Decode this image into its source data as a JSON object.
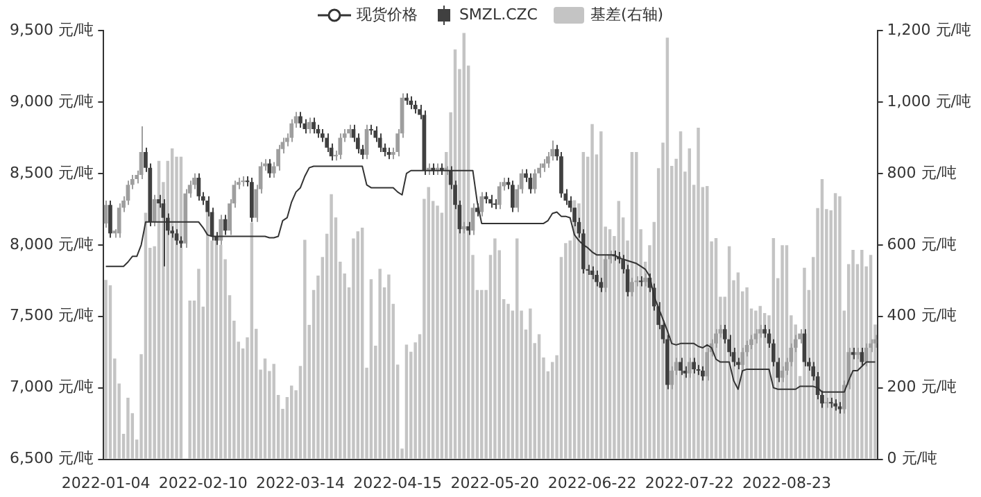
{
  "chart_data": {
    "type": "candlestick",
    "legend": "top",
    "grid": false,
    "categories": [
      "2022-01-04",
      null,
      null,
      null,
      null,
      null,
      null,
      null,
      null,
      null,
      null,
      null,
      null,
      null,
      null,
      null,
      null,
      null,
      null,
      null,
      null,
      null,
      "2022-02-10",
      null,
      null,
      null,
      null,
      null,
      null,
      null,
      null,
      null,
      null,
      null,
      null,
      null,
      null,
      null,
      null,
      null,
      null,
      null,
      null,
      null,
      "2022-03-14",
      null,
      null,
      null,
      null,
      null,
      null,
      null,
      null,
      null,
      null,
      null,
      null,
      null,
      null,
      null,
      null,
      null,
      null,
      null,
      null,
      null,
      "2022-04-15",
      null,
      null,
      null,
      null,
      null,
      null,
      null,
      null,
      null,
      null,
      null,
      null,
      null,
      null,
      null,
      null,
      null,
      null,
      null,
      null,
      null,
      "2022-05-20",
      null,
      null,
      null,
      null,
      null,
      null,
      null,
      null,
      null,
      null,
      null,
      null,
      null,
      null,
      null,
      null,
      null,
      null,
      null,
      null,
      null,
      "2022-06-22",
      null,
      null,
      null,
      null,
      null,
      null,
      null,
      null,
      null,
      null,
      null,
      null,
      null,
      null,
      null,
      null,
      null,
      null,
      null,
      null,
      null,
      "2022-07-22",
      null,
      null,
      null,
      null,
      null,
      null,
      null,
      null,
      null,
      null,
      null,
      null,
      null,
      null,
      null,
      null,
      null,
      null,
      null,
      null,
      null,
      "2022-08-23",
      null,
      null,
      null,
      null,
      null,
      null,
      null,
      null,
      null,
      null,
      null,
      null,
      null,
      null,
      null,
      null,
      null,
      null,
      null,
      null
    ],
    "ylim": [
      6500,
      9500
    ],
    "yticks": [
      {
        "value": 6500,
        "label": "6,500 元/吨"
      },
      {
        "value": 7000,
        "label": "7,000 元/吨"
      },
      {
        "value": 7500,
        "label": "7,500 元/吨"
      },
      {
        "value": 8000,
        "label": "8,000 元/吨"
      },
      {
        "value": 8500,
        "label": "8,500 元/吨"
      },
      {
        "value": 9000,
        "label": "9,000 元/吨"
      },
      {
        "value": 9500,
        "label": "9,500 元/吨"
      }
    ],
    "y2lim": [
      0,
      1200
    ],
    "y2ticks": [
      {
        "value": 0,
        "label": "0 元/吨"
      },
      {
        "value": 200,
        "label": "200 元/吨"
      },
      {
        "value": 400,
        "label": "400 元/吨"
      },
      {
        "value": 600,
        "label": "600 元/吨"
      },
      {
        "value": 800,
        "label": "800 元/吨"
      },
      {
        "value": 1000,
        "label": "1,000 元/吨"
      },
      {
        "value": 1200,
        "label": "1,200 元/吨"
      }
    ],
    "series": [
      {
        "name": "现货价格",
        "type": "line",
        "color": "#333333",
        "values": [
          7850,
          7850,
          7850,
          7850,
          7850,
          7880,
          7920,
          7920,
          8000,
          8160,
          8160,
          8160,
          8160,
          8160,
          8160,
          8160,
          8160,
          8160,
          8160,
          8160,
          8160,
          8160,
          8120,
          8070,
          8060,
          8060,
          8060,
          8060,
          8060,
          8060,
          8060,
          8060,
          8060,
          8060,
          8060,
          8060,
          8060,
          8050,
          8050,
          8060,
          8170,
          8190,
          8300,
          8370,
          8400,
          8480,
          8540,
          8550,
          8550,
          8550,
          8550,
          8550,
          8550,
          8550,
          8550,
          8550,
          8550,
          8550,
          8550,
          8420,
          8400,
          8400,
          8400,
          8400,
          8400,
          8400,
          8370,
          8350,
          8500,
          8520,
          8520,
          8520,
          8520,
          8520,
          8520,
          8520,
          8520,
          8520,
          8520,
          8520,
          8520,
          8520,
          8520,
          8520,
          8300,
          8150,
          8150,
          8150,
          8150,
          8150,
          8150,
          8150,
          8150,
          8150,
          8150,
          8150,
          8150,
          8150,
          8150,
          8150,
          8170,
          8220,
          8230,
          8200,
          8200,
          8190,
          8070,
          8030,
          8000,
          7980,
          7950,
          7930,
          7930,
          7930,
          7930,
          7930,
          7910,
          7900,
          7890,
          7880,
          7870,
          7850,
          7830,
          7780,
          7640,
          7560,
          7480,
          7400,
          7310,
          7300,
          7310,
          7310,
          7310,
          7310,
          7290,
          7280,
          7300,
          7280,
          7200,
          7180,
          7180,
          7180,
          7050,
          6990,
          7120,
          7130,
          7130,
          7130,
          7130,
          7130,
          7130,
          7000,
          6990,
          6990,
          6990,
          6990,
          6990,
          7010,
          7010,
          7010,
          7010,
          7000,
          6970,
          6970,
          6970,
          6970,
          6970,
          6970,
          7050,
          7120,
          7120,
          7150,
          7180,
          7180,
          7180
        ]
      },
      {
        "name": "SMZL.CZC",
        "color": "#404040",
        "colors": [
          "#9e9e9e",
          "#404040",
          "#9e9e9e",
          "#9e9e9e",
          "#9e9e9e",
          "#9e9e9e",
          "#9e9e9e",
          "#9e9e9e",
          "#9e9e9e",
          "#404040",
          "#404040",
          "#9e9e9e",
          "#404040",
          "#404040",
          "#404040",
          "#404040",
          "#404040",
          "#404040",
          "#9e9e9e",
          "#9e9e9e",
          "#9e9e9e",
          "#404040",
          "#404040",
          "#404040",
          "#404040",
          "#404040",
          "#9e9e9e",
          "#404040",
          "#9e9e9e",
          "#9e9e9e",
          "#9e9e9e",
          "#9e9e9e",
          "#404040",
          "#404040",
          "#9e9e9e",
          "#9e9e9e",
          "#9e9e9e",
          "#404040",
          "#9e9e9e",
          "#9e9e9e",
          "#9e9e9e",
          "#9e9e9e",
          "#9e9e9e",
          "#9e9e9e",
          "#404040",
          "#404040",
          "#9e9e9e",
          "#404040",
          "#404040",
          "#404040",
          "#404040",
          "#404040",
          "#9e9e9e",
          "#9e9e9e",
          "#9e9e9e",
          "#9e9e9e",
          "#404040",
          "#404040",
          "#404040",
          "#9e9e9e",
          "#404040",
          "#404040",
          "#404040",
          "#404040",
          "#404040",
          "#9e9e9e",
          "#9e9e9e",
          "#9e9e9e",
          "#404040",
          "#404040",
          "#404040",
          "#404040",
          "#404040",
          "#9e9e9e",
          "#404040",
          "#9e9e9e",
          "#404040",
          "#9e9e9e",
          "#404040",
          "#404040",
          "#404040",
          "#9e9e9e",
          "#404040",
          "#9e9e9e",
          "#404040",
          "#9e9e9e",
          "#404040",
          "#404040",
          "#404040",
          "#9e9e9e",
          "#9e9e9e",
          "#404040",
          "#404040",
          "#9e9e9e",
          "#9e9e9e",
          "#404040",
          "#404040",
          "#9e9e9e",
          "#9e9e9e",
          "#9e9e9e",
          "#9e9e9e",
          "#9e9e9e",
          "#404040",
          "#404040",
          "#404040",
          "#404040",
          "#404040",
          "#404040",
          "#404040",
          "#404040",
          "#404040",
          "#404040",
          "#404040",
          "#9e9e9e",
          "#9e9e9e",
          "#404040",
          "#404040",
          "#404040",
          "#404040",
          "#9e9e9e",
          "#9e9e9e",
          "#404040",
          "#9e9e9e",
          "#404040",
          "#404040",
          "#404040",
          "#404040",
          "#404040",
          "#9e9e9e",
          "#9e9e9e",
          "#404040",
          "#404040",
          "#9e9e9e",
          "#404040",
          "#404040",
          "#404040",
          "#9e9e9e",
          "#9e9e9e",
          "#9e9e9e",
          "#9e9e9e",
          "#404040",
          "#404040",
          "#404040",
          "#404040",
          "#9e9e9e",
          "#9e9e9e",
          "#9e9e9e",
          "#9e9e9e",
          "#9e9e9e",
          "#404040",
          "#404040",
          "#404040",
          "#404040",
          "#9e9e9e",
          "#9e9e9e",
          "#9e9e9e",
          "#9e9e9e",
          "#9e9e9e",
          "#404040",
          "#404040",
          "#404040",
          "#404040",
          "#404040",
          "#9e9e9e",
          "#404040",
          "#404040",
          "#404040",
          "#9e9e9e",
          "#9e9e9e",
          "#404040",
          "#9e9e9e",
          "#404040",
          "#9e9e9e",
          "#9e9e9e",
          "#9e9e9e"
        ],
        "ohlc": [
          [
            8150,
            8310,
            8120,
            8280
          ],
          [
            8280,
            8310,
            8050,
            8080
          ],
          [
            8080,
            8110,
            8050,
            8100
          ],
          [
            8080,
            8290,
            8050,
            8260
          ],
          [
            8260,
            8340,
            8230,
            8310
          ],
          [
            8310,
            8450,
            8280,
            8420
          ],
          [
            8420,
            8490,
            8390,
            8460
          ],
          [
            8460,
            8520,
            8430,
            8490
          ],
          [
            8490,
            8830,
            8460,
            8650
          ],
          [
            8650,
            8680,
            8510,
            8540
          ],
          [
            8540,
            8570,
            8130,
            8160
          ],
          [
            8160,
            8350,
            8130,
            8320
          ],
          [
            8320,
            8350,
            8260,
            8290
          ],
          [
            8290,
            8320,
            7850,
            8190
          ],
          [
            8190,
            8220,
            8070,
            8100
          ],
          [
            8100,
            8130,
            8050,
            8080
          ],
          [
            8080,
            8110,
            8000,
            8030
          ],
          [
            8030,
            8060,
            7980,
            8010
          ],
          [
            8010,
            8390,
            7980,
            8360
          ],
          [
            8360,
            8450,
            8330,
            8420
          ],
          [
            8420,
            8500,
            8390,
            8470
          ],
          [
            8470,
            8500,
            8310,
            8340
          ],
          [
            8340,
            8370,
            8280,
            8310
          ],
          [
            8310,
            8340,
            8200,
            8230
          ],
          [
            8230,
            8260,
            8030,
            8060
          ],
          [
            8060,
            8090,
            8000,
            8030
          ],
          [
            8030,
            8210,
            8000,
            8180
          ],
          [
            8180,
            8210,
            8070,
            8100
          ],
          [
            8100,
            8320,
            8070,
            8290
          ],
          [
            8290,
            8450,
            8260,
            8420
          ],
          [
            8420,
            8470,
            8390,
            8440
          ],
          [
            8440,
            8480,
            8410,
            8450
          ],
          [
            8450,
            8480,
            8410,
            8440
          ],
          [
            8440,
            8470,
            8160,
            8190
          ],
          [
            8190,
            8420,
            8160,
            8390
          ],
          [
            8390,
            8580,
            8360,
            8550
          ],
          [
            8550,
            8600,
            8520,
            8570
          ],
          [
            8570,
            8600,
            8470,
            8500
          ],
          [
            8500,
            8580,
            8470,
            8550
          ],
          [
            8550,
            8700,
            8520,
            8670
          ],
          [
            8670,
            8750,
            8640,
            8720
          ],
          [
            8720,
            8780,
            8690,
            8750
          ],
          [
            8750,
            8880,
            8720,
            8850
          ],
          [
            8850,
            8930,
            8820,
            8900
          ],
          [
            8900,
            8930,
            8820,
            8850
          ],
          [
            8850,
            8880,
            8780,
            8810
          ],
          [
            8810,
            8890,
            8780,
            8860
          ],
          [
            8860,
            8890,
            8780,
            8810
          ],
          [
            8810,
            8840,
            8750,
            8780
          ],
          [
            8780,
            8810,
            8720,
            8750
          ],
          [
            8750,
            8780,
            8650,
            8680
          ],
          [
            8680,
            8710,
            8590,
            8620
          ],
          [
            8620,
            8660,
            8590,
            8630
          ],
          [
            8630,
            8780,
            8600,
            8750
          ],
          [
            8750,
            8810,
            8720,
            8780
          ],
          [
            8780,
            8840,
            8750,
            8810
          ],
          [
            8810,
            8840,
            8720,
            8750
          ],
          [
            8750,
            8780,
            8640,
            8670
          ],
          [
            8670,
            8700,
            8600,
            8630
          ],
          [
            8630,
            8840,
            8600,
            8810
          ],
          [
            8810,
            8840,
            8770,
            8800
          ],
          [
            8800,
            8830,
            8720,
            8750
          ],
          [
            8750,
            8780,
            8650,
            8680
          ],
          [
            8680,
            8710,
            8620,
            8650
          ],
          [
            8650,
            8680,
            8600,
            8630
          ],
          [
            8630,
            8680,
            8600,
            8650
          ],
          [
            8650,
            8810,
            8620,
            8780
          ],
          [
            8780,
            9060,
            8750,
            9030
          ],
          [
            9030,
            9060,
            8980,
            9010
          ],
          [
            9010,
            9040,
            8950,
            8980
          ],
          [
            8980,
            9010,
            8920,
            8950
          ],
          [
            8950,
            8980,
            8880,
            8910
          ],
          [
            8910,
            8940,
            8490,
            8520
          ],
          [
            8520,
            8570,
            8490,
            8540
          ],
          [
            8540,
            8570,
            8490,
            8520
          ],
          [
            8520,
            8570,
            8490,
            8540
          ],
          [
            8540,
            8570,
            8490,
            8520
          ],
          [
            8520,
            8550,
            8490,
            8540
          ],
          [
            8520,
            8550,
            8390,
            8420
          ],
          [
            8420,
            8450,
            8250,
            8280
          ],
          [
            8280,
            8310,
            8080,
            8110
          ],
          [
            8110,
            8160,
            8080,
            8130
          ],
          [
            8130,
            8160,
            8070,
            8100
          ],
          [
            8100,
            8290,
            8070,
            8260
          ],
          [
            8260,
            8290,
            8200,
            8230
          ],
          [
            8230,
            8370,
            8200,
            8340
          ],
          [
            8340,
            8370,
            8290,
            8320
          ],
          [
            8320,
            8350,
            8260,
            8290
          ],
          [
            8290,
            8320,
            8250,
            8280
          ],
          [
            8280,
            8440,
            8250,
            8410
          ],
          [
            8410,
            8470,
            8380,
            8440
          ],
          [
            8440,
            8470,
            8390,
            8420
          ],
          [
            8420,
            8450,
            8230,
            8260
          ],
          [
            8260,
            8420,
            8230,
            8390
          ],
          [
            8390,
            8530,
            8360,
            8500
          ],
          [
            8500,
            8530,
            8440,
            8470
          ],
          [
            8470,
            8500,
            8360,
            8390
          ],
          [
            8390,
            8530,
            8360,
            8500
          ],
          [
            8500,
            8570,
            8470,
            8540
          ],
          [
            8540,
            8600,
            8510,
            8570
          ],
          [
            8570,
            8650,
            8540,
            8620
          ],
          [
            8620,
            8730,
            8590,
            8670
          ],
          [
            8670,
            8700,
            8590,
            8620
          ],
          [
            8620,
            8650,
            8330,
            8360
          ],
          [
            8360,
            8390,
            8280,
            8310
          ],
          [
            8310,
            8340,
            8230,
            8260
          ],
          [
            8260,
            8260,
            8130,
            8160
          ],
          [
            8160,
            8190,
            8050,
            8080
          ],
          [
            8080,
            8110,
            7800,
            7830
          ],
          [
            7830,
            7860,
            7790,
            7820
          ],
          [
            7820,
            7850,
            7760,
            7790
          ],
          [
            7790,
            7820,
            7710,
            7740
          ],
          [
            7740,
            7770,
            7670,
            7700
          ],
          [
            7700,
            7930,
            7670,
            7900
          ],
          [
            7900,
            7960,
            7870,
            7930
          ],
          [
            7930,
            7960,
            7890,
            7920
          ],
          [
            7920,
            7950,
            7870,
            7900
          ],
          [
            7900,
            7930,
            7800,
            7830
          ],
          [
            7830,
            7860,
            7640,
            7670
          ],
          [
            7670,
            7770,
            7640,
            7740
          ],
          [
            7740,
            7780,
            7710,
            7750
          ],
          [
            7750,
            7780,
            7710,
            7740
          ],
          [
            7740,
            7800,
            7710,
            7770
          ],
          [
            7770,
            7800,
            7670,
            7700
          ],
          [
            7700,
            7730,
            7540,
            7570
          ],
          [
            7570,
            7600,
            7410,
            7440
          ],
          [
            7440,
            7470,
            7310,
            7340
          ],
          [
            7340,
            7370,
            6990,
            7020
          ],
          [
            7020,
            7150,
            6990,
            7120
          ],
          [
            7120,
            7210,
            7090,
            7180
          ],
          [
            7180,
            7210,
            7090,
            7120
          ],
          [
            7120,
            7150,
            7070,
            7100
          ],
          [
            7100,
            7210,
            7070,
            7180
          ],
          [
            7180,
            7210,
            7100,
            7130
          ],
          [
            7130,
            7160,
            7090,
            7120
          ],
          [
            7120,
            7150,
            7050,
            7080
          ],
          [
            7080,
            7280,
            7050,
            7250
          ],
          [
            7250,
            7340,
            7220,
            7310
          ],
          [
            7310,
            7410,
            7280,
            7380
          ],
          [
            7380,
            7440,
            7350,
            7410
          ],
          [
            7410,
            7440,
            7310,
            7340
          ],
          [
            7340,
            7370,
            7220,
            7250
          ],
          [
            7250,
            7280,
            7150,
            7180
          ],
          [
            7180,
            7210,
            7130,
            7160
          ],
          [
            7160,
            7280,
            7130,
            7250
          ],
          [
            7250,
            7330,
            7220,
            7300
          ],
          [
            7300,
            7370,
            7270,
            7340
          ],
          [
            7340,
            7410,
            7310,
            7380
          ],
          [
            7380,
            7440,
            7350,
            7410
          ],
          [
            7410,
            7440,
            7350,
            7380
          ],
          [
            7380,
            7410,
            7280,
            7310
          ],
          [
            7310,
            7340,
            7150,
            7180
          ],
          [
            7180,
            7210,
            7040,
            7070
          ],
          [
            7070,
            7150,
            7040,
            7120
          ],
          [
            7120,
            7210,
            7090,
            7180
          ],
          [
            7180,
            7310,
            7150,
            7280
          ],
          [
            7280,
            7370,
            7250,
            7340
          ],
          [
            7340,
            7410,
            7310,
            7380
          ],
          [
            7380,
            7410,
            7150,
            7180
          ],
          [
            7180,
            7210,
            7120,
            7150
          ],
          [
            7150,
            7180,
            7050,
            7080
          ],
          [
            7080,
            7110,
            6920,
            6950
          ],
          [
            6950,
            6980,
            6860,
            6890
          ],
          [
            6890,
            6930,
            6860,
            6900
          ],
          [
            6900,
            6930,
            6860,
            6890
          ],
          [
            6890,
            6920,
            6840,
            6870
          ],
          [
            6870,
            6900,
            6820,
            6850
          ],
          [
            6850,
            7050,
            6820,
            7020
          ],
          [
            7020,
            7280,
            6990,
            7250
          ],
          [
            7250,
            7280,
            7200,
            7230
          ],
          [
            7230,
            7280,
            7200,
            7250
          ],
          [
            7250,
            7280,
            7150,
            7180
          ],
          [
            7180,
            7310,
            7150,
            7280
          ],
          [
            7280,
            7340,
            7250,
            7310
          ],
          [
            7310,
            7370,
            7280,
            7340
          ]
        ]
      },
      {
        "name": "基差(右轴)",
        "type": "bar",
        "axis": "y2",
        "color": "#c4c4c4",
        "values": [
          502,
          487,
          282,
          212,
          71,
          172,
          129,
          55,
          294,
          690,
          592,
          596,
          835,
          776,
          835,
          870,
          847,
          847,
          null,
          444,
          444,
          533,
          427,
          703,
          612,
          624,
          600,
          560,
          459,
          388,
          329,
          310,
          341,
          663,
          365,
          251,
          282,
          247,
          267,
          180,
          141,
          174,
          206,
          193,
          261,
          614,
          376,
          474,
          514,
          566,
          631,
          742,
          677,
          553,
          520,
          481,
          618,
          638,
          648,
          256,
          504,
          318,
          533,
          481,
          517,
          435,
          265,
          30,
          321,
          301,
          327,
          350,
          729,
          762,
          723,
          710,
          690,
          860,
          971,
          1147,
          1092,
          1193,
          1102,
          572,
          474,
          474,
          474,
          572,
          618,
          585,
          448,
          435,
          416,
          618,
          416,
          363,
          422,
          325,
          350,
          285,
          246,
          272,
          291,
          566,
          605,
          612,
          725,
          716,
          860,
          847,
          938,
          853,
          918,
          651,
          644,
          625,
          723,
          677,
          612,
          860,
          860,
          644,
          553,
          599,
          664,
          815,
          886,
          1180,
          821,
          841,
          918,
          805,
          870,
          768,
          928,
          762,
          765,
          610,
          619,
          455,
          455,
          596,
          501,
          523,
          470,
          481,
          422,
          416,
          429,
          409,
          403,
          619,
          507,
          599,
          599,
          403,
          377,
          233,
          536,
          474,
          566,
          703,
          784,
          700,
          697,
          745,
          736,
          416,
          546,
          586,
          546,
          586,
          540,
          572,
          377
        ]
      }
    ]
  }
}
